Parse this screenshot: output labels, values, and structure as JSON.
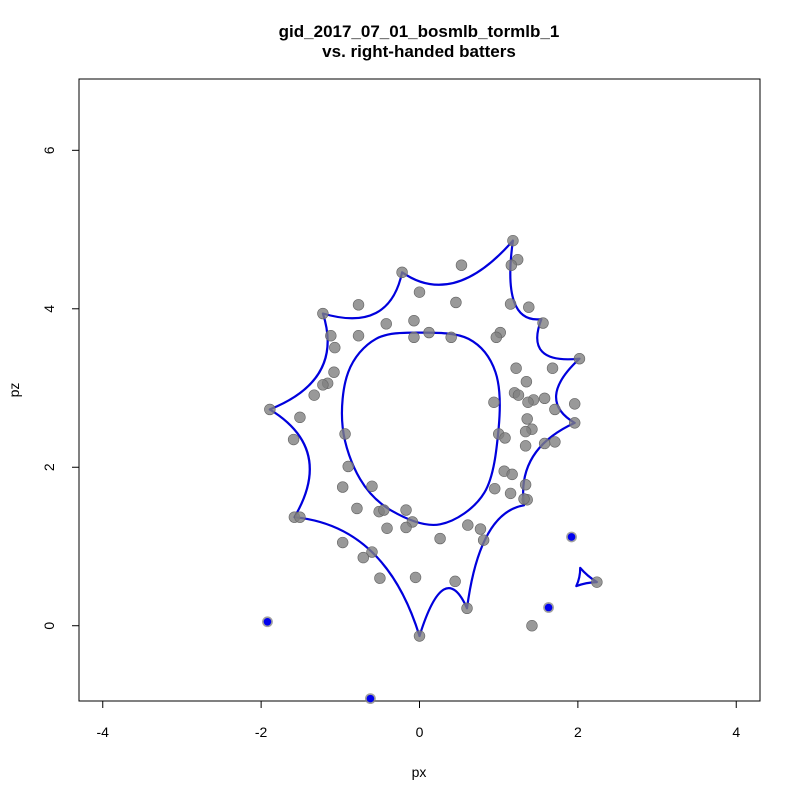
{
  "chart_data": {
    "type": "scatter",
    "title": "gid_2017_07_01_bosmlb_tormlb_1",
    "subtitle": "vs. right-handed batters",
    "xlabel": "px",
    "ylabel": "pz",
    "xlim": [
      -4.3,
      4.3
    ],
    "ylim": [
      -0.95,
      6.9
    ],
    "xticks": [
      -4,
      -2,
      0,
      2,
      4
    ],
    "yticks": [
      0,
      2,
      4,
      6
    ],
    "grid": false,
    "legend": "none",
    "colors": {
      "point_fill": "#808080",
      "point_outline": "#666666",
      "highlight_fill": "#0000ee",
      "highlight_outline": "#555577",
      "boundary": "#0000dd"
    },
    "series": [
      {
        "marker": "grey-circle",
        "points": [
          [
            1.18,
            4.86
          ],
          [
            1.24,
            4.62
          ],
          [
            1.16,
            4.55
          ],
          [
            0.53,
            4.55
          ],
          [
            -0.22,
            4.46
          ],
          [
            0.0,
            4.21
          ],
          [
            0.46,
            4.08
          ],
          [
            1.15,
            4.06
          ],
          [
            -0.77,
            4.05
          ],
          [
            -1.22,
            3.94
          ],
          [
            1.38,
            4.02
          ],
          [
            -0.42,
            3.81
          ],
          [
            -0.07,
            3.85
          ],
          [
            1.56,
            3.82
          ],
          [
            1.02,
            3.7
          ],
          [
            -1.12,
            3.66
          ],
          [
            -0.77,
            3.66
          ],
          [
            0.12,
            3.7
          ],
          [
            -0.07,
            3.64
          ],
          [
            0.4,
            3.64
          ],
          [
            0.97,
            3.64
          ],
          [
            -1.07,
            3.51
          ],
          [
            1.22,
            3.25
          ],
          [
            1.68,
            3.25
          ],
          [
            -1.08,
            3.2
          ],
          [
            -1.16,
            3.06
          ],
          [
            -1.22,
            3.04
          ],
          [
            1.35,
            3.08
          ],
          [
            2.02,
            3.37
          ],
          [
            -1.33,
            2.91
          ],
          [
            1.2,
            2.94
          ],
          [
            1.25,
            2.91
          ],
          [
            1.44,
            2.85
          ],
          [
            1.58,
            2.87
          ],
          [
            1.37,
            2.82
          ],
          [
            0.94,
            2.82
          ],
          [
            1.96,
            2.8
          ],
          [
            -1.89,
            2.73
          ],
          [
            1.71,
            2.73
          ],
          [
            -1.51,
            2.63
          ],
          [
            1.36,
            2.61
          ],
          [
            1.96,
            2.56
          ],
          [
            1.42,
            2.48
          ],
          [
            1.34,
            2.45
          ],
          [
            1.0,
            2.42
          ],
          [
            -0.94,
            2.42
          ],
          [
            1.08,
            2.37
          ],
          [
            -1.59,
            2.35
          ],
          [
            1.71,
            2.32
          ],
          [
            1.58,
            2.3
          ],
          [
            1.34,
            2.27
          ],
          [
            -0.9,
            2.01
          ],
          [
            1.07,
            1.95
          ],
          [
            1.17,
            1.91
          ],
          [
            -0.97,
            1.75
          ],
          [
            -0.6,
            1.76
          ],
          [
            1.34,
            1.78
          ],
          [
            0.95,
            1.73
          ],
          [
            1.15,
            1.67
          ],
          [
            1.36,
            1.59
          ],
          [
            1.32,
            1.6
          ],
          [
            -0.79,
            1.48
          ],
          [
            -0.51,
            1.44
          ],
          [
            -0.45,
            1.46
          ],
          [
            -0.17,
            1.46
          ],
          [
            -1.58,
            1.37
          ],
          [
            -1.51,
            1.37
          ],
          [
            -0.09,
            1.31
          ],
          [
            -0.41,
            1.23
          ],
          [
            -0.17,
            1.24
          ],
          [
            0.61,
            1.27
          ],
          [
            0.77,
            1.22
          ],
          [
            0.26,
            1.1
          ],
          [
            0.81,
            1.08
          ],
          [
            -0.97,
            1.05
          ],
          [
            -0.6,
            0.93
          ],
          [
            -0.71,
            0.86
          ],
          [
            0.45,
            0.56
          ],
          [
            -0.5,
            0.6
          ],
          [
            -0.05,
            0.61
          ],
          [
            2.24,
            0.55
          ],
          [
            0.6,
            0.22
          ],
          [
            1.42,
            0.0
          ],
          [
            0.0,
            -0.13
          ]
        ]
      },
      {
        "marker": "blue-circle",
        "points": [
          [
            1.92,
            1.12
          ],
          [
            1.63,
            0.23
          ],
          [
            -1.92,
            0.05
          ],
          [
            -0.62,
            -0.92
          ]
        ]
      }
    ],
    "boundaries": [
      {
        "name": "outer",
        "vertices": [
          [
            1.18,
            4.86
          ],
          [
            1.54,
            3.87
          ],
          [
            2.02,
            3.37
          ],
          [
            1.96,
            2.56
          ],
          [
            1.32,
            1.52
          ],
          [
            0.6,
            0.22
          ],
          [
            0.0,
            -0.13
          ],
          [
            -1.58,
            1.37
          ],
          [
            -1.89,
            2.73
          ],
          [
            -1.22,
            3.94
          ],
          [
            -0.22,
            4.46
          ]
        ]
      },
      {
        "name": "inner",
        "vertices": [
          [
            0.0,
            3.7
          ],
          [
            0.62,
            3.62
          ],
          [
            0.96,
            3.2
          ],
          [
            1.0,
            2.5
          ],
          [
            0.82,
            1.68
          ],
          [
            0.26,
            1.28
          ],
          [
            -0.35,
            1.45
          ],
          [
            -0.75,
            1.85
          ],
          [
            -0.97,
            2.5
          ],
          [
            -0.9,
            3.2
          ],
          [
            -0.55,
            3.62
          ]
        ]
      },
      {
        "name": "small-triangle",
        "vertices": [
          [
            2.03,
            0.73
          ],
          [
            2.24,
            0.55
          ],
          [
            1.98,
            0.5
          ]
        ]
      }
    ]
  }
}
